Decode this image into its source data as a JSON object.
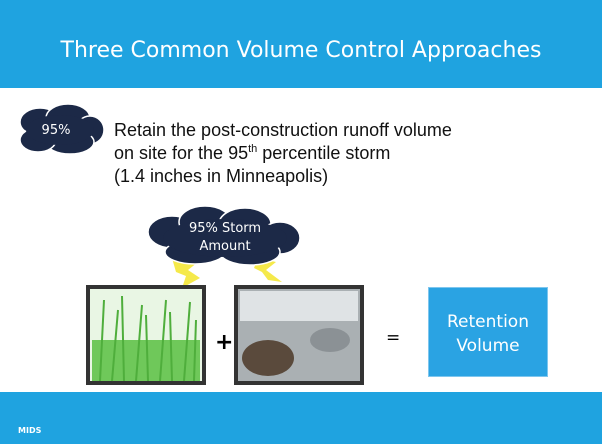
{
  "header": {
    "title": "Three Common Volume Control Approaches"
  },
  "callout": {
    "label": "95%"
  },
  "body": {
    "line1": "Retain the post-construction runoff volume",
    "line2": "on site for the 95",
    "superscript": "th",
    "line2_end": " percentile storm",
    "line3": "(1.4 inches in Minneapolis)"
  },
  "storm_cloud": {
    "lines": [
      "95% Storm",
      "Amount"
    ]
  },
  "equation": {
    "plus": "+",
    "equals": "=",
    "result": [
      "Retention",
      "Volume"
    ]
  },
  "footer": {
    "logo_text": "MIDS"
  }
}
